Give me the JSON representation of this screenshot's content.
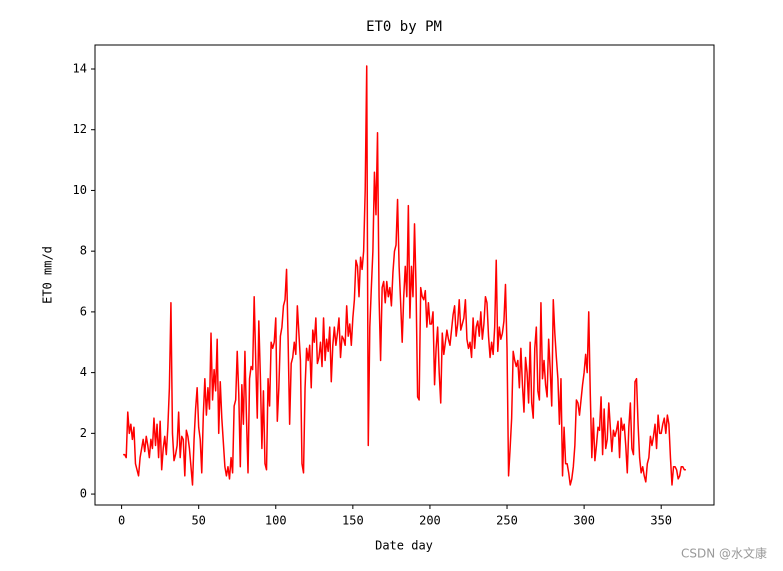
{
  "chart_data": {
    "type": "line",
    "title": "ET0 by PM",
    "xlabel": "Date day",
    "ylabel": "ET0 mm/d",
    "watermark": "CSDN @水文康",
    "color": "#ff0000",
    "xlim": [
      -17.25,
      384.25
    ],
    "ylim": [
      -0.36,
      14.79
    ],
    "xticks": [
      0,
      50,
      100,
      150,
      200,
      250,
      300,
      350
    ],
    "yticks": [
      0,
      2,
      4,
      6,
      8,
      10,
      12,
      14
    ],
    "x": [
      1,
      2,
      3,
      4,
      5,
      6,
      7,
      8,
      9,
      10,
      11,
      12,
      13,
      14,
      15,
      16,
      17,
      18,
      19,
      20,
      21,
      22,
      23,
      24,
      25,
      26,
      27,
      28,
      29,
      30,
      31,
      32,
      33,
      34,
      35,
      36,
      37,
      38,
      39,
      40,
      41,
      42,
      43,
      44,
      45,
      46,
      47,
      48,
      49,
      50,
      51,
      52,
      53,
      54,
      55,
      56,
      57,
      58,
      59,
      60,
      61,
      62,
      63,
      64,
      65,
      66,
      67,
      68,
      69,
      70,
      71,
      72,
      73,
      74,
      75,
      76,
      77,
      78,
      79,
      80,
      81,
      82,
      83,
      84,
      85,
      86,
      87,
      88,
      89,
      90,
      91,
      92,
      93,
      94,
      95,
      96,
      97,
      98,
      99,
      100,
      101,
      102,
      103,
      104,
      105,
      106,
      107,
      108,
      109,
      110,
      111,
      112,
      113,
      114,
      115,
      116,
      117,
      118,
      119,
      120,
      121,
      122,
      123,
      124,
      125,
      126,
      127,
      128,
      129,
      130,
      131,
      132,
      133,
      134,
      135,
      136,
      137,
      138,
      139,
      140,
      141,
      142,
      143,
      144,
      145,
      146,
      147,
      148,
      149,
      150,
      151,
      152,
      153,
      154,
      155,
      156,
      157,
      158,
      159,
      160,
      161,
      162,
      163,
      164,
      165,
      166,
      167,
      168,
      169,
      170,
      171,
      172,
      173,
      174,
      175,
      176,
      177,
      178,
      179,
      180,
      181,
      182,
      183,
      184,
      185,
      186,
      187,
      188,
      189,
      190,
      191,
      192,
      193,
      194,
      195,
      196,
      197,
      198,
      199,
      200,
      201,
      202,
      203,
      204,
      205,
      206,
      207,
      208,
      209,
      210,
      211,
      212,
      213,
      214,
      215,
      216,
      217,
      218,
      219,
      220,
      221,
      222,
      223,
      224,
      225,
      226,
      227,
      228,
      229,
      230,
      231,
      232,
      233,
      234,
      235,
      236,
      237,
      238,
      239,
      240,
      241,
      242,
      243,
      244,
      245,
      246,
      247,
      248,
      249,
      250,
      251,
      252,
      253,
      254,
      255,
      256,
      257,
      258,
      259,
      260,
      261,
      262,
      263,
      264,
      265,
      266,
      267,
      268,
      269,
      270,
      271,
      272,
      273,
      274,
      275,
      276,
      277,
      278,
      279,
      280,
      281,
      282,
      283,
      284,
      285,
      286,
      287,
      288,
      289,
      290,
      291,
      292,
      293,
      294,
      295,
      296,
      297,
      298,
      299,
      300,
      301,
      302,
      303,
      304,
      305,
      306,
      307,
      308,
      309,
      310,
      311,
      312,
      313,
      314,
      315,
      316,
      317,
      318,
      319,
      320,
      321,
      322,
      323,
      324,
      325,
      326,
      327,
      328,
      329,
      330,
      331,
      332,
      333,
      334,
      335,
      336,
      337,
      338,
      339,
      340,
      341,
      342,
      343,
      344,
      345,
      346,
      347,
      348,
      349,
      350,
      351,
      352,
      353,
      354,
      355,
      356,
      357,
      358,
      359,
      360,
      361,
      362,
      363,
      364,
      365,
      366
    ],
    "values": [
      1.3,
      1.3,
      1.2,
      2.7,
      2.0,
      2.3,
      1.8,
      2.2,
      1.0,
      0.8,
      0.6,
      1.2,
      1.5,
      1.8,
      1.4,
      1.9,
      1.6,
      1.2,
      1.8,
      1.5,
      2.5,
      1.6,
      2.3,
      1.2,
      2.4,
      0.8,
      1.5,
      1.9,
      1.3,
      2.2,
      3.5,
      6.3,
      2.0,
      1.1,
      1.3,
      1.6,
      2.7,
      1.2,
      1.9,
      1.8,
      0.6,
      2.1,
      1.9,
      1.5,
      0.9,
      0.3,
      1.8,
      2.8,
      3.5,
      2.2,
      1.8,
      0.7,
      2.6,
      3.8,
      2.6,
      3.5,
      2.8,
      5.3,
      3.1,
      4.1,
      3.4,
      5.1,
      2.0,
      3.7,
      2.5,
      1.7,
      0.9,
      0.6,
      0.9,
      0.5,
      1.2,
      0.7,
      2.9,
      3.1,
      4.7,
      3.3,
      0.9,
      3.6,
      2.3,
      4.7,
      2.5,
      0.7,
      3.8,
      4.2,
      4.1,
      6.5,
      4.4,
      2.5,
      5.7,
      3.9,
      1.5,
      3.4,
      1.0,
      0.8,
      3.8,
      2.9,
      5.0,
      4.8,
      5.0,
      5.8,
      2.4,
      3.5,
      5.2,
      5.5,
      6.2,
      6.4,
      7.4,
      5.1,
      2.3,
      4.3,
      4.5,
      5.0,
      4.6,
      6.2,
      5.3,
      4.4,
      1.0,
      0.7,
      3.5,
      4.8,
      4.4,
      4.9,
      3.5,
      5.4,
      5.0,
      5.8,
      4.3,
      4.5,
      5.0,
      4.2,
      5.8,
      4.4,
      5.1,
      4.7,
      5.5,
      3.7,
      4.9,
      5.5,
      4.9,
      5.3,
      5.8,
      4.5,
      5.2,
      5.1,
      4.9,
      6.2,
      5.2,
      5.6,
      4.9,
      5.8,
      6.4,
      7.7,
      7.5,
      6.5,
      7.8,
      7.4,
      8.0,
      10.0,
      14.1,
      1.6,
      5.5,
      6.8,
      8.0,
      10.6,
      9.2,
      11.9,
      6.5,
      4.4,
      6.8,
      7.0,
      6.3,
      7.0,
      6.5,
      6.8,
      6.2,
      7.3,
      8.0,
      8.2,
      9.7,
      7.5,
      6.3,
      5.0,
      6.5,
      7.5,
      6.5,
      9.5,
      5.8,
      7.5,
      6.5,
      8.9,
      6.8,
      3.2,
      3.1,
      6.8,
      6.5,
      6.4,
      6.7,
      5.5,
      6.3,
      5.6,
      5.6,
      6.0,
      3.6,
      4.8,
      5.5,
      4.0,
      3.0,
      5.3,
      4.6,
      5.0,
      5.4,
      5.1,
      4.9,
      5.4,
      5.9,
      6.2,
      5.2,
      5.6,
      6.4,
      5.4,
      5.6,
      5.8,
      6.4,
      5.1,
      4.8,
      5.0,
      4.5,
      5.8,
      4.8,
      5.5,
      5.7,
      5.2,
      6.0,
      5.1,
      5.6,
      6.5,
      6.3,
      5.2,
      4.5,
      5.0,
      4.6,
      5.5,
      7.7,
      4.7,
      5.5,
      5.1,
      5.3,
      5.7,
      6.9,
      4.8,
      0.6,
      1.5,
      2.5,
      4.7,
      4.4,
      4.2,
      4.4,
      3.5,
      4.8,
      3.6,
      2.7,
      4.5,
      4.0,
      3.0,
      5.0,
      3.0,
      2.5,
      4.8,
      5.5,
      3.4,
      3.1,
      6.3,
      3.8,
      4.4,
      3.6,
      3.2,
      5.1,
      4.1,
      2.9,
      6.4,
      5.3,
      4.5,
      3.8,
      2.3,
      3.8,
      0.6,
      2.2,
      1.0,
      1.0,
      0.7,
      0.3,
      0.5,
      0.9,
      1.6,
      3.1,
      3.0,
      2.6,
      3.1,
      3.6,
      4.0,
      4.6,
      4.0,
      6.0,
      3.3,
      1.2,
      2.5,
      1.1,
      1.6,
      2.2,
      2.1,
      3.2,
      1.3,
      2.8,
      1.5,
      1.8,
      3.0,
      2.2,
      1.4,
      2.1,
      1.9,
      2.1,
      2.4,
      1.2,
      2.5,
      2.1,
      2.3,
      1.6,
      0.7,
      2.2,
      3.0,
      1.5,
      1.3,
      3.7,
      3.8,
      2.3,
      1.2,
      0.7,
      0.9,
      0.6,
      0.4,
      1.0,
      1.2,
      1.9,
      1.6,
      1.9,
      2.3,
      1.5,
      2.6,
      2.0,
      2.0,
      2.3,
      2.5,
      2.0,
      2.6,
      2.3,
      1.2,
      0.3,
      0.9,
      0.9,
      0.8,
      0.5,
      0.6,
      0.9,
      0.9,
      0.8,
      0.8
    ]
  }
}
